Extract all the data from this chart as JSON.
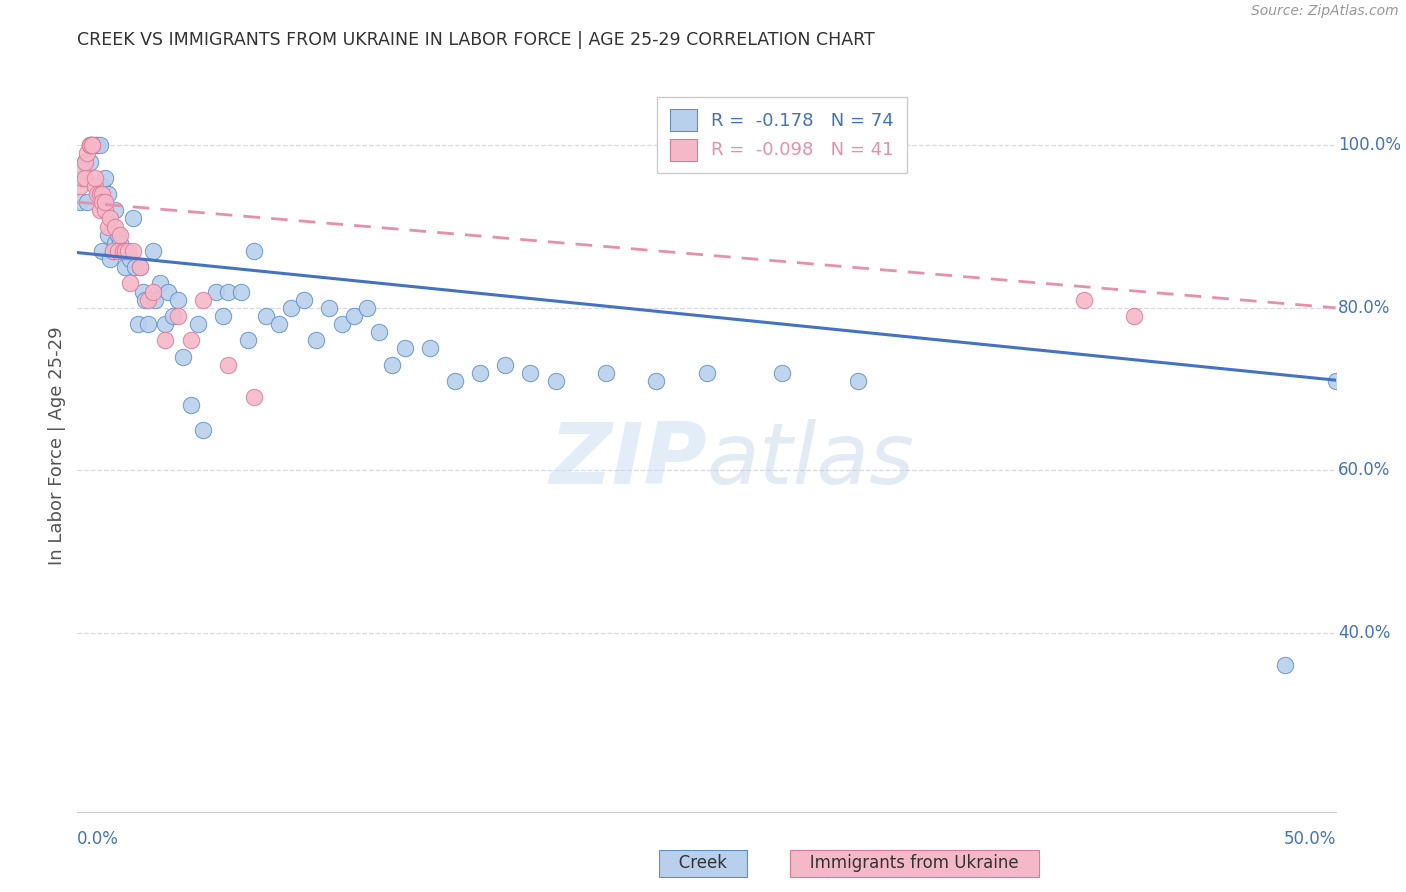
{
  "title": "CREEK VS IMMIGRANTS FROM UKRAINE IN LABOR FORCE | AGE 25-29 CORRELATION CHART",
  "source": "Source: ZipAtlas.com",
  "ylabel": "In Labor Force | Age 25-29",
  "legend_creek_R": "-0.178",
  "legend_creek_N": "74",
  "legend_ukraine_R": "-0.098",
  "legend_ukraine_N": "41",
  "ytick_labels": [
    "100.0%",
    "80.0%",
    "60.0%",
    "40.0%"
  ],
  "ytick_values": [
    1.0,
    0.8,
    0.6,
    0.4
  ],
  "xlim": [
    0.0,
    0.5
  ],
  "ylim": [
    0.18,
    1.08
  ],
  "background_color": "#ffffff",
  "grid_color": "#d8d8e8",
  "title_color": "#333333",
  "axis_label_color": "#4472c4",
  "creek_fill": "#b8d0ec",
  "ukraine_fill": "#f5b8c8",
  "creek_edge": "#6090c8",
  "ukraine_edge": "#e07898",
  "creek_line_color": "#4472c4",
  "ukraine_line_color": "#e890a8",
  "watermark_color": "#c8ddf0",
  "creek_x": [
    0.001,
    0.002,
    0.003,
    0.004,
    0.005,
    0.005,
    0.006,
    0.007,
    0.008,
    0.009,
    0.01,
    0.01,
    0.011,
    0.012,
    0.012,
    0.013,
    0.014,
    0.015,
    0.015,
    0.016,
    0.017,
    0.018,
    0.019,
    0.02,
    0.021,
    0.022,
    0.023,
    0.024,
    0.025,
    0.026,
    0.027,
    0.028,
    0.03,
    0.031,
    0.033,
    0.035,
    0.036,
    0.038,
    0.04,
    0.042,
    0.045,
    0.048,
    0.05,
    0.055,
    0.058,
    0.06,
    0.065,
    0.068,
    0.07,
    0.075,
    0.08,
    0.085,
    0.09,
    0.095,
    0.1,
    0.105,
    0.11,
    0.115,
    0.12,
    0.125,
    0.13,
    0.14,
    0.15,
    0.16,
    0.17,
    0.18,
    0.19,
    0.21,
    0.23,
    0.25,
    0.28,
    0.31,
    0.48,
    0.5
  ],
  "creek_y": [
    0.93,
    0.96,
    0.98,
    0.93,
    0.98,
    1.0,
    1.0,
    1.0,
    1.0,
    1.0,
    0.95,
    0.87,
    0.96,
    0.94,
    0.89,
    0.86,
    0.87,
    0.92,
    0.88,
    0.89,
    0.88,
    0.87,
    0.85,
    0.87,
    0.86,
    0.91,
    0.85,
    0.78,
    0.85,
    0.82,
    0.81,
    0.78,
    0.87,
    0.81,
    0.83,
    0.78,
    0.82,
    0.79,
    0.81,
    0.74,
    0.68,
    0.78,
    0.65,
    0.82,
    0.79,
    0.82,
    0.82,
    0.76,
    0.87,
    0.79,
    0.78,
    0.8,
    0.81,
    0.76,
    0.8,
    0.78,
    0.79,
    0.8,
    0.77,
    0.73,
    0.75,
    0.75,
    0.71,
    0.72,
    0.73,
    0.72,
    0.71,
    0.72,
    0.71,
    0.72,
    0.72,
    0.71,
    0.36,
    0.71
  ],
  "ukraine_x": [
    0.001,
    0.002,
    0.002,
    0.003,
    0.003,
    0.004,
    0.005,
    0.005,
    0.006,
    0.006,
    0.007,
    0.007,
    0.008,
    0.009,
    0.009,
    0.01,
    0.01,
    0.011,
    0.011,
    0.012,
    0.013,
    0.014,
    0.015,
    0.016,
    0.017,
    0.018,
    0.019,
    0.02,
    0.021,
    0.022,
    0.025,
    0.028,
    0.03,
    0.035,
    0.04,
    0.045,
    0.05,
    0.06,
    0.07,
    0.4,
    0.42
  ],
  "ukraine_y": [
    0.95,
    0.96,
    0.97,
    0.96,
    0.98,
    0.99,
    1.0,
    1.0,
    1.0,
    1.0,
    0.95,
    0.96,
    0.94,
    0.94,
    0.92,
    0.94,
    0.93,
    0.92,
    0.93,
    0.9,
    0.91,
    0.87,
    0.9,
    0.87,
    0.89,
    0.87,
    0.87,
    0.87,
    0.83,
    0.87,
    0.85,
    0.81,
    0.82,
    0.76,
    0.79,
    0.76,
    0.81,
    0.73,
    0.69,
    0.81,
    0.79
  ],
  "creek_trendline": [
    0.868,
    0.711
  ],
  "ukraine_trendline": [
    0.93,
    0.8
  ]
}
